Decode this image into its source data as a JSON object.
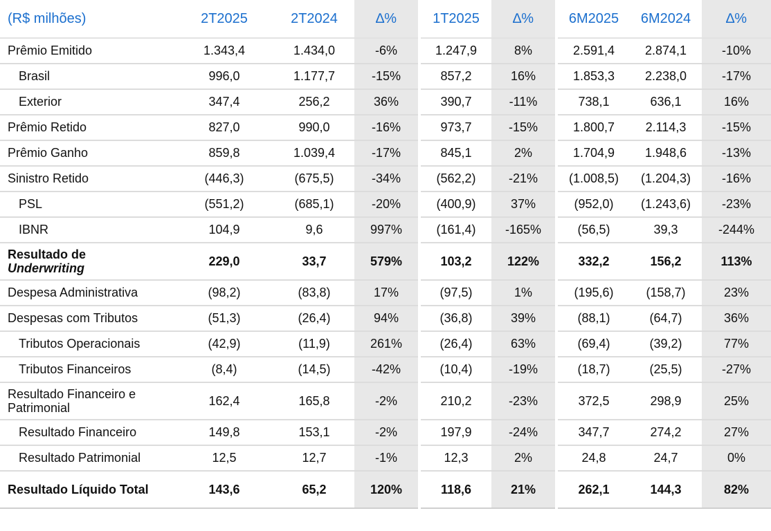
{
  "table": {
    "header": {
      "label": "(R$ milhões)",
      "cols": [
        "2T2025",
        "2T2024",
        "∆%",
        "1T2025",
        "∆%",
        "6M2025",
        "6M2024",
        "∆%"
      ]
    },
    "rows": [
      {
        "label": "Prêmio Emitido",
        "values": [
          "1.343,4",
          "1.434,0",
          "-6%",
          "1.247,9",
          "8%",
          "2.591,4",
          "2.874,1",
          "-10%"
        ]
      },
      {
        "label": "Brasil",
        "values": [
          "996,0",
          "1.177,7",
          "-15%",
          "857,2",
          "16%",
          "1.853,3",
          "2.238,0",
          "-17%"
        ]
      },
      {
        "label": "Exterior",
        "values": [
          "347,4",
          "256,2",
          "36%",
          "390,7",
          "-11%",
          "738,1",
          "636,1",
          "16%"
        ]
      },
      {
        "label": "Prêmio Retido",
        "values": [
          "827,0",
          "990,0",
          "-16%",
          "973,7",
          "-15%",
          "1.800,7",
          "2.114,3",
          "-15%"
        ]
      },
      {
        "label": "Prêmio Ganho",
        "values": [
          "859,8",
          "1.039,4",
          "-17%",
          "845,1",
          "2%",
          "1.704,9",
          "1.948,6",
          "-13%"
        ]
      },
      {
        "label": "Sinistro Retido",
        "values": [
          "(446,3)",
          "(675,5)",
          "-34%",
          "(562,2)",
          "-21%",
          "(1.008,5)",
          "(1.204,3)",
          "-16%"
        ]
      },
      {
        "label": "PSL",
        "values": [
          "(551,2)",
          "(685,1)",
          "-20%",
          "(400,9)",
          "37%",
          "(952,0)",
          "(1.243,6)",
          "-23%"
        ]
      },
      {
        "label": "IBNR",
        "values": [
          "104,9",
          "9,6",
          "997%",
          "(161,4)",
          "-165%",
          "(56,5)",
          "39,3",
          "-244%"
        ]
      },
      {
        "label_line1": "Resultado de",
        "label_line2": "Underwriting",
        "values": [
          "229,0",
          "33,7",
          "579%",
          "103,2",
          "122%",
          "332,2",
          "156,2",
          "113%"
        ]
      },
      {
        "label": "Despesa Administrativa",
        "values": [
          "(98,2)",
          "(83,8)",
          "17%",
          "(97,5)",
          "1%",
          "(195,6)",
          "(158,7)",
          "23%"
        ]
      },
      {
        "label": "Despesas com Tributos",
        "values": [
          "(51,3)",
          "(26,4)",
          "94%",
          "(36,8)",
          "39%",
          "(88,1)",
          "(64,7)",
          "36%"
        ]
      },
      {
        "label": "Tributos Operacionais",
        "values": [
          "(42,9)",
          "(11,9)",
          "261%",
          "(26,4)",
          "63%",
          "(69,4)",
          "(39,2)",
          "77%"
        ]
      },
      {
        "label": "Tributos Financeiros",
        "values": [
          "(8,4)",
          "(14,5)",
          "-42%",
          "(10,4)",
          "-19%",
          "(18,7)",
          "(25,5)",
          "-27%"
        ]
      },
      {
        "label": "Resultado Financeiro e Patrimonial",
        "values": [
          "162,4",
          "165,8",
          "-2%",
          "210,2",
          "-23%",
          "372,5",
          "298,9",
          "25%"
        ]
      },
      {
        "label": "Resultado Financeiro",
        "values": [
          "149,8",
          "153,1",
          "-2%",
          "197,9",
          "-24%",
          "347,7",
          "274,2",
          "27%"
        ]
      },
      {
        "label": "Resultado Patrimonial",
        "values": [
          "12,5",
          "12,7",
          "-1%",
          "12,3",
          "2%",
          "24,8",
          "24,7",
          "0%"
        ]
      },
      {
        "label": "Resultado Líquido Total",
        "values": [
          "143,6",
          "65,2",
          "120%",
          "118,6",
          "21%",
          "262,1",
          "144,3",
          "82%"
        ]
      }
    ]
  }
}
